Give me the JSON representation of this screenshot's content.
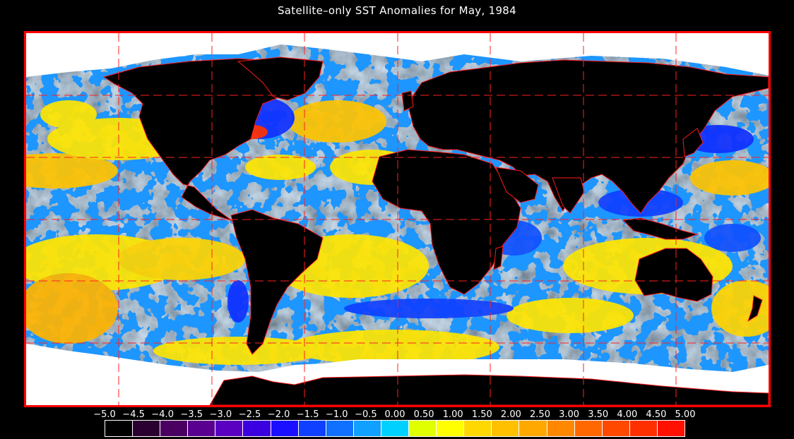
{
  "title": "Satellite–only SST Anomalies for May, 1984",
  "map": {
    "projection": "equirectangular",
    "grid_lines": "dashed red",
    "land_color": "#000000",
    "ice_color": "#ffffff",
    "border_color": "#ff0000"
  },
  "colorbar": {
    "labels": [
      "−5.0",
      "−4.5",
      "−4.0",
      "−3.5",
      "−3.0",
      "−2.5",
      "−2.0",
      "−1.5",
      "−1.0",
      "−0.5",
      "0.00",
      "0.50",
      "1.00",
      "1.50",
      "2.00",
      "2.50",
      "3.00",
      "3.50",
      "4.00",
      "4.50",
      "5.00"
    ],
    "colors": [
      "#000000",
      "#2a0030",
      "#4a0060",
      "#5a0090",
      "#5a00c0",
      "#3a00e0",
      "#1a10ff",
      "#1040ff",
      "#1070ff",
      "#10a0ff",
      "#00d0ff",
      "#e0ff00",
      "#ffff00",
      "#ffd800",
      "#ffc000",
      "#ffa800",
      "#ff8800",
      "#ff6800",
      "#ff4800",
      "#ff3000",
      "#ff1000"
    ]
  }
}
